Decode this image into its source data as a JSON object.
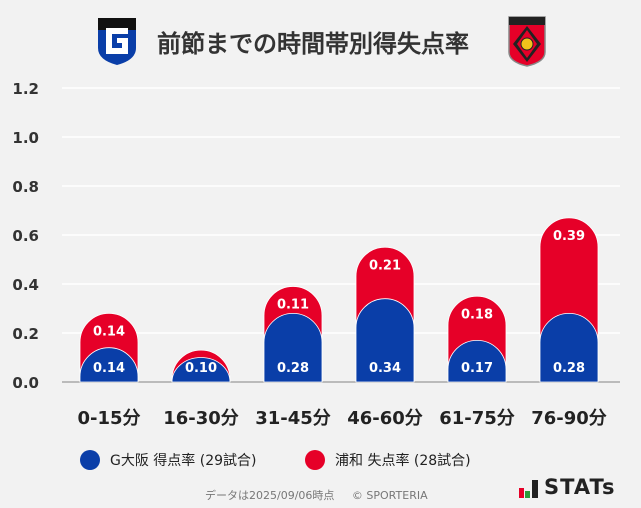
{
  "title": "前節までの時間帯別得失点率",
  "footer": {
    "note": "データは2025/09/06時点",
    "copyright": "© SPORTERIA",
    "brand": "STATs"
  },
  "logos": {
    "left": "Gamba Osaka crest",
    "right": "Urawa Reds crest"
  },
  "colors": {
    "blue": "#0a3ea8",
    "red": "#e60028"
  },
  "chart_data": {
    "type": "bar",
    "stacked": true,
    "categories": [
      "0-15分",
      "16-30分",
      "31-45分",
      "46-60分",
      "61-75分",
      "76-90分"
    ],
    "series": [
      {
        "name": "G大阪 得点率 (29試合)",
        "color": "#0a3ea8",
        "values": [
          0.14,
          0.1,
          0.28,
          0.34,
          0.17,
          0.28
        ],
        "labels": [
          "0.14",
          "0.10",
          "0.28",
          "0.34",
          "0.17",
          "0.28"
        ]
      },
      {
        "name": "浦和 失点率 (28試合)",
        "color": "#e60028",
        "values": [
          0.14,
          0.03,
          0.11,
          0.21,
          0.18,
          0.39
        ],
        "labels": [
          "0.14",
          "",
          "0.11",
          "0.21",
          "0.18",
          "0.39"
        ]
      }
    ],
    "ylim": [
      0,
      1.2
    ],
    "yticks": [
      "0.0",
      "0.2",
      "0.4",
      "0.6",
      "0.8",
      "1.0",
      "1.2"
    ],
    "grid": true,
    "legend": "bottom"
  }
}
